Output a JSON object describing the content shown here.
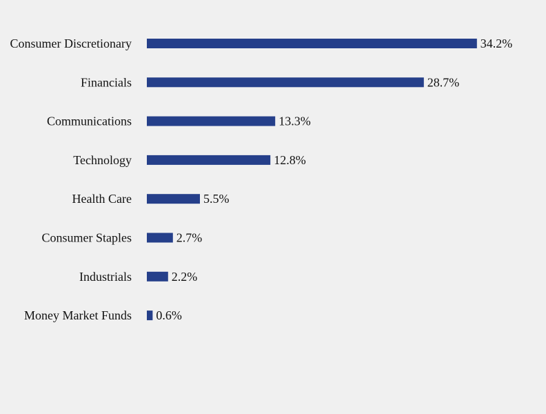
{
  "chart_data": {
    "type": "bar",
    "orientation": "horizontal",
    "categories": [
      "Consumer Discretionary",
      "Financials",
      "Communications",
      "Technology",
      "Health Care",
      "Consumer Staples",
      "Industrials",
      "Money Market Funds"
    ],
    "values": [
      34.2,
      28.7,
      13.3,
      12.8,
      5.5,
      2.7,
      2.2,
      0.6
    ],
    "value_labels": [
      "34.2%",
      "28.7%",
      "13.3%",
      "12.8%",
      "5.5%",
      "2.7%",
      "2.2%",
      "0.6%"
    ],
    "unit": "%",
    "title": "",
    "xlabel": "",
    "ylabel": "",
    "grid": false,
    "legend": "none",
    "bar_color": "#253f8a",
    "background_color": "#f0f0f0"
  }
}
